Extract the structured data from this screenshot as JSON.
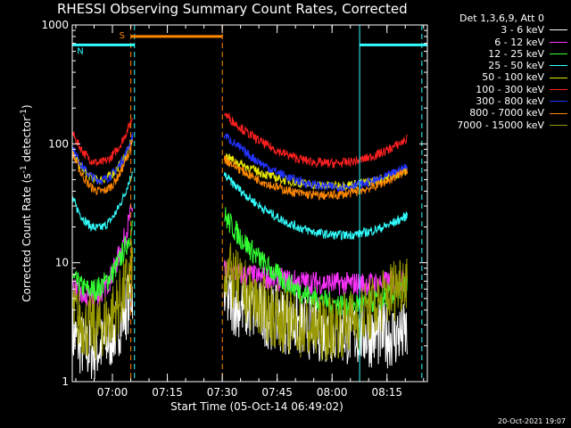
{
  "chart_data": {
    "type": "line",
    "title": "RHESSI Observing Summary Count Rates, Corrected",
    "xlabel": "Start Time (05-Oct-14 06:49:02)",
    "ylabel": "Corrected Count Rate (s",
    "ylabel_sup": "-1",
    "ylabel_mid": " detector",
    "ylabel_sup2": "-1",
    "ylabel_end": ")",
    "yscale": "log",
    "ylim": [
      1,
      1000
    ],
    "xlim_minutes": [
      0,
      97
    ],
    "x_ticks": [
      {
        "min": 10.97,
        "label": "07:00"
      },
      {
        "min": 25.97,
        "label": "07:15"
      },
      {
        "min": 40.97,
        "label": "07:30"
      },
      {
        "min": 55.97,
        "label": "07:45"
      },
      {
        "min": 70.97,
        "label": "08:00"
      },
      {
        "min": 85.97,
        "label": "08:15"
      }
    ],
    "y_ticks": [
      {
        "value": 1,
        "label": "1"
      },
      {
        "value": 10,
        "label": "10"
      },
      {
        "value": 100,
        "label": "100"
      },
      {
        "value": 1000,
        "label": "1000"
      }
    ],
    "legend_header": "Det 1,3,6,9, Att 0",
    "legend_placement": "outside-right",
    "series": [
      {
        "name": "3 - 6 keV",
        "color": "#ffffff"
      },
      {
        "name": "6 - 12 keV",
        "color": "#ff33ff"
      },
      {
        "name": "12 - 25 keV",
        "color": "#33ff33"
      },
      {
        "name": "25 - 50 keV",
        "color": "#33ffff"
      },
      {
        "name": "50 - 100 keV",
        "color": "#e6e600"
      },
      {
        "name": "100 - 300 keV",
        "color": "#ff2020"
      },
      {
        "name": "300 - 800 keV",
        "color": "#2233ff"
      },
      {
        "name": "800 - 7000 keV",
        "color": "#ff8800"
      },
      {
        "name": "7000 - 15000 keV",
        "color": "#999900"
      }
    ],
    "segments": [
      {
        "start_min": 0,
        "end_min": 16.5,
        "values_start": [
          2.5,
          6.5,
          7.5,
          35,
          85,
          125,
          95,
          85,
          4
        ],
        "values_mid": [
          2.0,
          5.8,
          6.5,
          20,
          50,
          70,
          50,
          40,
          3
        ],
        "values_end": [
          6.0,
          30,
          20,
          60,
          110,
          170,
          115,
          105,
          9
        ]
      },
      {
        "start_min": 41.5,
        "end_min": 91.5,
        "values_start": [
          5.0,
          8.5,
          25,
          55,
          80,
          180,
          120,
          75,
          9
        ],
        "values_mid": [
          2.8,
          6.8,
          5.0,
          18,
          45,
          70,
          45,
          37,
          2.8
        ],
        "values_end": [
          2.5,
          7.0,
          6.5,
          25,
          60,
          110,
          65,
          60,
          8
        ]
      }
    ],
    "markers": [
      {
        "type": "S",
        "label": "S",
        "color": "#ff8800",
        "from_min": 16.0,
        "to_min": 41.0,
        "value": 800
      },
      {
        "type": "N",
        "label": "N",
        "color": "#33ffff",
        "from_min": 0,
        "to_min": 17.0,
        "value": 680
      },
      {
        "type": "N",
        "label": "",
        "color": "#33ffff",
        "from_min": 78.5,
        "to_min": 97,
        "value": 680
      }
    ],
    "vlines": [
      {
        "min": 16.0,
        "color": "#ff8800",
        "dash": true
      },
      {
        "min": 17.0,
        "color": "#33ffff",
        "dash": true
      },
      {
        "min": 41.0,
        "color": "#ff8800",
        "dash": true
      },
      {
        "min": 78.5,
        "color": "#33ffff",
        "dash": false
      },
      {
        "min": 95.5,
        "color": "#33ffff",
        "dash": true
      }
    ],
    "grid": false
  },
  "stamp": "20-Oct-2021 19:07"
}
